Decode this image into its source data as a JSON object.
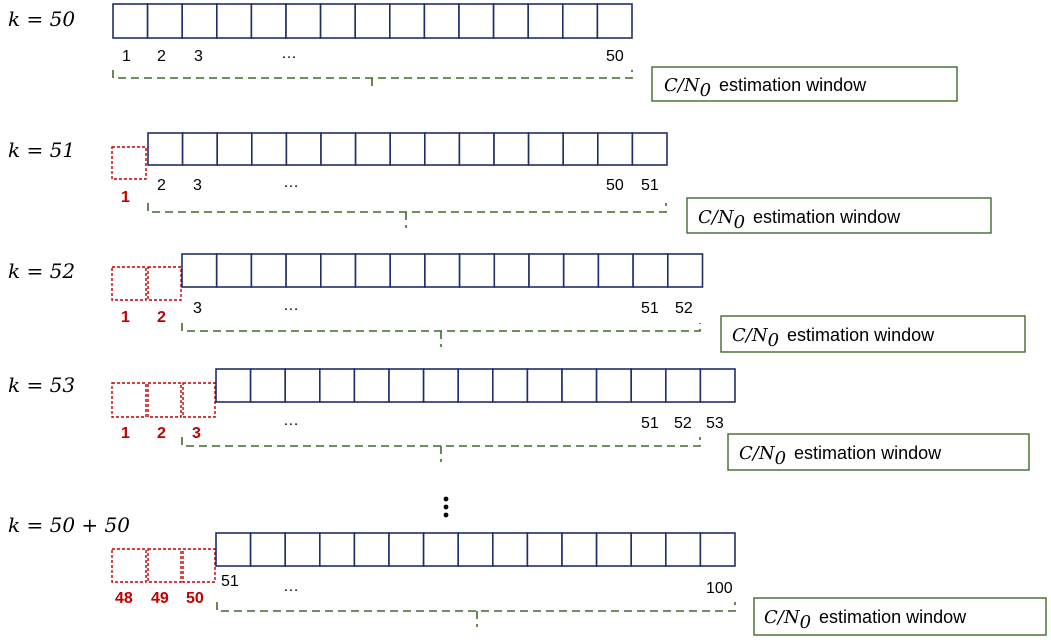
{
  "window_label": {
    "math": "C/N",
    "subscript": "0",
    "text": "estimation window"
  },
  "rows": [
    {
      "k_label": "k = 50",
      "removed": [],
      "indices": [
        "1",
        "2",
        "3",
        "…",
        "50"
      ]
    },
    {
      "k_label": "k = 51",
      "removed": [
        "1"
      ],
      "indices": [
        "2",
        "3",
        "…",
        "50",
        "51"
      ]
    },
    {
      "k_label": "k = 52",
      "removed": [
        "1",
        "2"
      ],
      "indices": [
        "3",
        "…",
        "51",
        "52"
      ]
    },
    {
      "k_label": "k = 53",
      "removed": [
        "1",
        "2",
        "3"
      ],
      "indices": [
        "…",
        "51",
        "52",
        "53"
      ]
    },
    {
      "k_label": "k = 50 + 50",
      "removed": [
        "48",
        "49",
        "50"
      ],
      "indices": [
        "51",
        "…",
        "100"
      ]
    }
  ],
  "colors": {
    "cell_border": "#1f2f6b",
    "removed": "#c00000",
    "window": "#3f6b2a"
  }
}
